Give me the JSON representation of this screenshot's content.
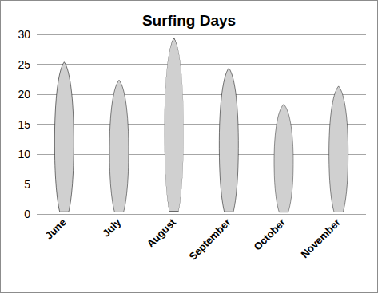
{
  "chart_data": {
    "type": "bar",
    "title": "Surfing Days",
    "categories": [
      "June",
      "July",
      "August",
      "September",
      "October",
      "November"
    ],
    "values": [
      25,
      22,
      29,
      24,
      18,
      21
    ],
    "color": "#d0d0d0",
    "marker": "surfboard",
    "ylim": [
      0,
      30
    ],
    "yticks": [
      0,
      5,
      10,
      15,
      20,
      25,
      30
    ],
    "grid": true
  }
}
